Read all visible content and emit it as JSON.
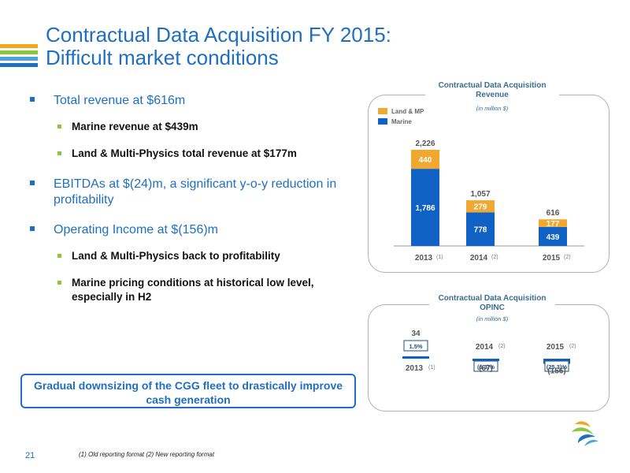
{
  "slide": {
    "title_line1": "Contractual Data Acquisition FY 2015:",
    "title_line2": "Difficult market conditions",
    "page_number": "21",
    "footnote": "(1) Old reporting format  (2) New reporting format",
    "callout": "Gradual downsizing of the CGG fleet to drastically improve cash generation",
    "bullets": [
      {
        "text": "Total revenue at $616m",
        "subs": [
          "Marine revenue at $439m",
          "Land & Multi-Physics total revenue at $177m"
        ]
      },
      {
        "text": "EBITDAs at $(24)m, a significant y-o-y reduction in profitability",
        "subs": []
      },
      {
        "text": "Operating Income at $(156)m",
        "subs": [
          "Land & Multi-Physics back to profitability",
          "Marine pricing conditions at historical low level, especially in H2"
        ]
      }
    ],
    "colors": {
      "brand_blue": "#1f6fc1",
      "marine": "#0f62c4",
      "land": "#f0a830",
      "sub_bullet": "#8cc63e"
    }
  },
  "chart_data": [
    {
      "type": "bar",
      "stacked": true,
      "title": "Contractual Data Acquisition Revenue",
      "subtitle": "(in million $)",
      "categories": [
        "2013",
        "2014",
        "2015"
      ],
      "category_notes": [
        "(1)",
        "(2)",
        "(2)"
      ],
      "series": [
        {
          "name": "Marine",
          "values": [
            1786,
            778,
            439
          ],
          "labels": [
            "1,786",
            "778",
            "439"
          ],
          "color": "#0f62c4"
        },
        {
          "name": "Land & MP",
          "values": [
            440,
            279,
            177
          ],
          "labels": [
            "440",
            "279",
            "177"
          ],
          "color": "#f0a830"
        }
      ],
      "totals": [
        2226,
        1057,
        616
      ],
      "total_labels": [
        "2,226",
        "1,057",
        "616"
      ],
      "ylim": [
        0,
        2226
      ],
      "legend": "top-left",
      "grid": false
    },
    {
      "type": "bar",
      "title": "Contractual Data Acquisition OPINC",
      "subtitle": "(in million $)",
      "categories": [
        "2013",
        "2014",
        "2015"
      ],
      "category_notes": [
        "(1)",
        "(2)",
        "(2)"
      ],
      "values": [
        34,
        -67,
        -156
      ],
      "value_labels": [
        "34",
        "(67)",
        "(156)"
      ],
      "margin_labels": [
        "1.5%",
        "(6.3)%",
        "(25.3)%"
      ],
      "color": "#0f62c4",
      "grid": false
    }
  ]
}
